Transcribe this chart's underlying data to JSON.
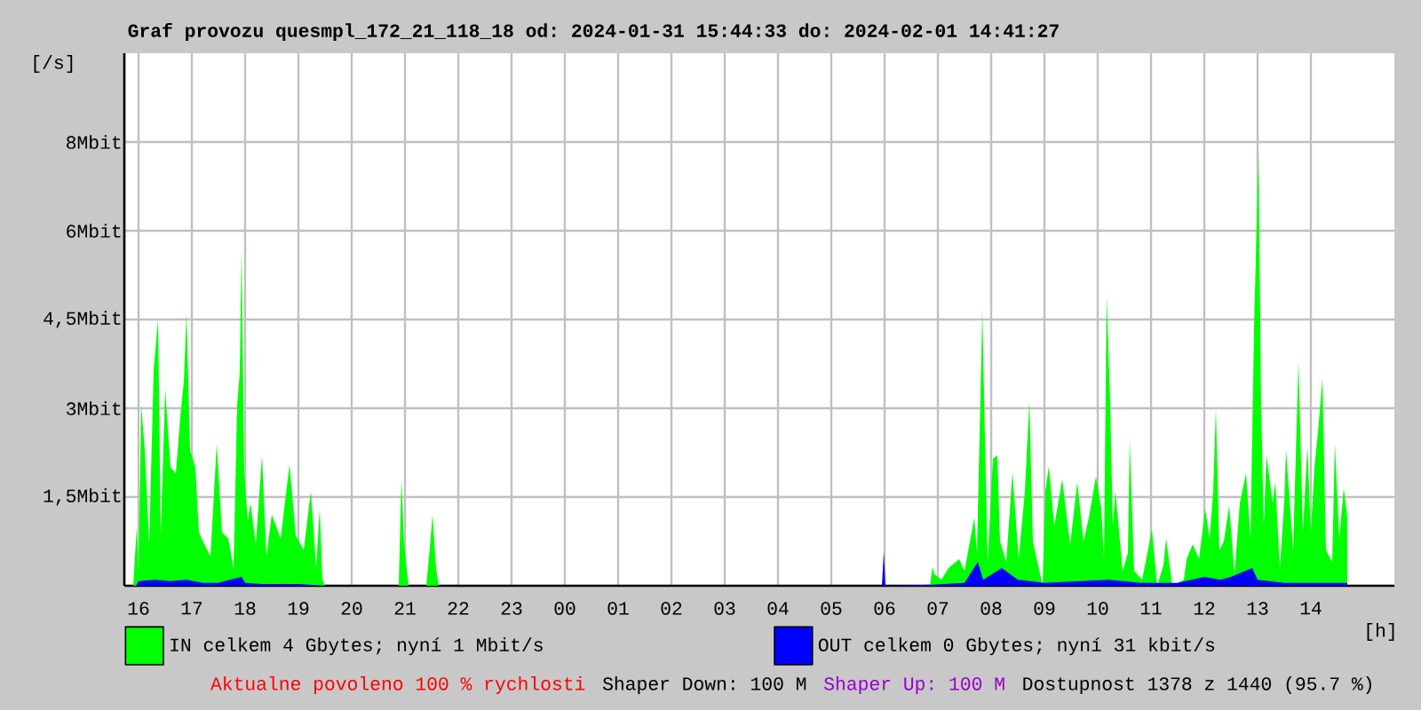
{
  "chart_data": {
    "type": "area",
    "title": "Graf provozu quesmpl_172_21_118_18 od: 2024-01-31 15:44:33 do: 2024-02-01 14:41:27",
    "ylabel": "[/s]",
    "xlabel": "[h]",
    "xlim": [
      "2024-01-31T15:44",
      "2024-02-01T15:34"
    ],
    "xticks": [
      {
        "value": "2024-01-31T16:00",
        "label": "16"
      },
      {
        "value": "2024-01-31T17:00",
        "label": "17"
      },
      {
        "value": "2024-01-31T18:00",
        "label": "18"
      },
      {
        "value": "2024-01-31T19:00",
        "label": "19"
      },
      {
        "value": "2024-01-31T20:00",
        "label": "20"
      },
      {
        "value": "2024-01-31T21:00",
        "label": "21"
      },
      {
        "value": "2024-01-31T22:00",
        "label": "22"
      },
      {
        "value": "2024-01-31T23:00",
        "label": "23"
      },
      {
        "value": "2024-02-01T00:00",
        "label": "00"
      },
      {
        "value": "2024-02-01T01:00",
        "label": "01"
      },
      {
        "value": "2024-02-01T02:00",
        "label": "02"
      },
      {
        "value": "2024-02-01T03:00",
        "label": "03"
      },
      {
        "value": "2024-02-01T04:00",
        "label": "04"
      },
      {
        "value": "2024-02-01T05:00",
        "label": "05"
      },
      {
        "value": "2024-02-01T06:00",
        "label": "06"
      },
      {
        "value": "2024-02-01T07:00",
        "label": "07"
      },
      {
        "value": "2024-02-01T08:00",
        "label": "08"
      },
      {
        "value": "2024-02-01T09:00",
        "label": "09"
      },
      {
        "value": "2024-02-01T10:00",
        "label": "10"
      },
      {
        "value": "2024-02-01T11:00",
        "label": "11"
      },
      {
        "value": "2024-02-01T12:00",
        "label": "12"
      },
      {
        "value": "2024-02-01T13:00",
        "label": "13"
      },
      {
        "value": "2024-02-01T14:00",
        "label": "14"
      }
    ],
    "ylim": [
      0,
      9
    ],
    "yticks": [
      {
        "value": 1.5,
        "label": "1,5Mbit"
      },
      {
        "value": 3,
        "label": "3Mbit"
      },
      {
        "value": 4.5,
        "label": "4,5Mbit"
      },
      {
        "value": 6,
        "label": "6Mbit"
      },
      {
        "value": 7.5,
        "label": "8Mbit"
      }
    ],
    "grid": true,
    "legend": "bottom",
    "series": [
      {
        "name": "IN celkem 4 Gbytes; nyní 1 Mbit/s",
        "color": "#00ff00",
        "x": [
          "2024-01-31T15:54",
          "2024-01-31T15:58",
          "2024-01-31T16:00",
          "2024-01-31T16:03",
          "2024-01-31T16:07",
          "2024-01-31T16:12",
          "2024-01-31T16:17",
          "2024-01-31T16:22",
          "2024-01-31T16:25",
          "2024-01-31T16:30",
          "2024-01-31T16:36",
          "2024-01-31T16:42",
          "2024-01-31T16:47",
          "2024-01-31T16:51",
          "2024-01-31T16:54",
          "2024-01-31T16:58",
          "2024-01-31T17:04",
          "2024-01-31T17:08",
          "2024-01-31T17:14",
          "2024-01-31T17:21",
          "2024-01-31T17:28",
          "2024-01-31T17:34",
          "2024-01-31T17:41",
          "2024-01-31T17:47",
          "2024-01-31T17:51",
          "2024-01-31T17:54",
          "2024-01-31T17:56",
          "2024-01-31T17:59",
          "2024-01-31T18:03",
          "2024-01-31T18:06",
          "2024-01-31T18:12",
          "2024-01-31T18:19",
          "2024-01-31T18:24",
          "2024-01-31T18:30",
          "2024-01-31T18:40",
          "2024-01-31T18:50",
          "2024-01-31T18:57",
          "2024-01-31T19:06",
          "2024-01-31T19:14",
          "2024-01-31T19:20",
          "2024-01-31T19:24",
          "2024-01-31T19:27",
          "2024-01-31T19:30",
          "2024-01-31T20:53",
          "2024-01-31T20:56",
          "2024-01-31T20:59",
          "2024-01-31T21:04",
          "2024-01-31T21:24",
          "2024-01-31T21:28",
          "2024-01-31T21:31",
          "2024-01-31T21:35",
          "2024-01-31T21:38",
          "2024-02-01T06:51",
          "2024-02-01T06:54",
          "2024-02-01T06:56",
          "2024-02-01T07:04",
          "2024-02-01T07:12",
          "2024-02-01T07:24",
          "2024-02-01T07:30",
          "2024-02-01T07:41",
          "2024-02-01T07:44",
          "2024-02-01T07:49",
          "2024-02-01T07:50",
          "2024-02-01T07:53",
          "2024-02-01T07:56",
          "2024-02-01T08:02",
          "2024-02-01T08:07",
          "2024-02-01T08:10",
          "2024-02-01T08:17",
          "2024-02-01T08:24",
          "2024-02-01T08:31",
          "2024-02-01T08:38",
          "2024-02-01T08:43",
          "2024-02-01T08:47",
          "2024-02-01T08:58",
          "2024-02-01T09:01",
          "2024-02-01T09:05",
          "2024-02-01T09:11",
          "2024-02-01T09:20",
          "2024-02-01T09:24",
          "2024-02-01T09:29",
          "2024-02-01T09:37",
          "2024-02-01T09:44",
          "2024-02-01T09:50",
          "2024-02-01T09:58",
          "2024-02-01T10:04",
          "2024-02-01T10:07",
          "2024-02-01T10:10",
          "2024-02-01T10:14",
          "2024-02-01T10:17",
          "2024-02-01T10:20",
          "2024-02-01T10:28",
          "2024-02-01T10:34",
          "2024-02-01T10:36",
          "2024-02-01T10:41",
          "2024-02-01T10:50",
          "2024-02-01T11:01",
          "2024-02-01T11:07",
          "2024-02-01T11:14",
          "2024-02-01T11:17",
          "2024-02-01T11:24",
          "2024-02-01T11:37",
          "2024-02-01T11:40",
          "2024-02-01T11:47",
          "2024-02-01T11:54",
          "2024-02-01T12:01",
          "2024-02-01T12:06",
          "2024-02-01T12:10",
          "2024-02-01T12:13",
          "2024-02-01T12:17",
          "2024-02-01T12:22",
          "2024-02-01T12:28",
          "2024-02-01T12:34",
          "2024-02-01T12:40",
          "2024-02-01T12:47",
          "2024-02-01T12:52",
          "2024-02-01T12:56",
          "2024-02-01T13:01",
          "2024-02-01T13:04",
          "2024-02-01T13:07",
          "2024-02-01T13:10",
          "2024-02-01T13:17",
          "2024-02-01T13:20",
          "2024-02-01T13:25",
          "2024-02-01T13:30",
          "2024-02-01T13:32",
          "2024-02-01T13:40",
          "2024-02-01T13:46",
          "2024-02-01T13:51",
          "2024-02-01T13:56",
          "2024-02-01T14:00",
          "2024-02-01T14:04",
          "2024-02-01T14:08",
          "2024-02-01T14:13",
          "2024-02-01T14:17",
          "2024-02-01T14:24",
          "2024-02-01T14:27",
          "2024-02-01T14:32",
          "2024-02-01T14:37",
          "2024-02-01T14:41"
        ],
        "values": [
          0,
          1.0,
          0.2,
          3.05,
          2.3,
          0.7,
          3.65,
          4.5,
          0.85,
          3.33,
          2.0,
          1.9,
          2.85,
          3.45,
          4.6,
          2.3,
          2.0,
          0.9,
          0.7,
          0.5,
          2.4,
          0.9,
          0.8,
          0.3,
          3.05,
          3.6,
          5.7,
          1.9,
          1.1,
          1.4,
          0.7,
          2.2,
          0.5,
          1.2,
          0.8,
          2.05,
          0.85,
          0.6,
          1.6,
          0.3,
          1.3,
          0.1,
          0,
          0,
          1.8,
          0.7,
          0,
          0,
          0.65,
          1.2,
          0.3,
          0,
          0,
          0.32,
          0.2,
          0.1,
          0.3,
          0.45,
          0.25,
          1.15,
          0.55,
          3.9,
          4.65,
          2.5,
          0.4,
          2.15,
          2.2,
          0.75,
          0.4,
          1.92,
          0.45,
          1.6,
          3.12,
          0.75,
          0,
          1.6,
          2.02,
          1.0,
          1.8,
          1.3,
          0.7,
          1.75,
          0.75,
          1.15,
          1.85,
          1.3,
          0.45,
          4.9,
          3.1,
          1.0,
          1.6,
          0.25,
          0.55,
          2.45,
          0.25,
          0.1,
          0.95,
          0,
          0.35,
          0.8,
          0,
          0.1,
          0.45,
          0.7,
          0.45,
          1.3,
          0.8,
          1.6,
          3.0,
          0.6,
          0.75,
          1.35,
          0.2,
          1.4,
          1.9,
          0.8,
          4.35,
          7.35,
          3.0,
          1.0,
          2.2,
          1.4,
          1.75,
          0.3,
          1.4,
          2.3,
          0.6,
          3.8,
          0.9,
          2.35,
          0.9,
          2.0,
          2.6,
          3.5,
          0.6,
          0.4,
          2.4,
          0.8,
          1.65,
          1.15
        ]
      },
      {
        "name": "OUT celkem 0 Gbytes; nyní 31 kbit/s",
        "color": "#0000ff",
        "x": [
          "2024-01-31T15:57",
          "2024-01-31T16:00",
          "2024-01-31T16:18",
          "2024-01-31T16:36",
          "2024-01-31T16:54",
          "2024-01-31T17:12",
          "2024-01-31T17:30",
          "2024-01-31T17:56",
          "2024-01-31T18:00",
          "2024-01-31T18:18",
          "2024-01-31T19:00",
          "2024-01-31T19:30",
          "2024-02-01T05:57",
          "2024-02-01T05:59",
          "2024-02-01T06:01",
          "2024-02-01T06:54",
          "2024-02-01T07:30",
          "2024-02-01T07:45",
          "2024-02-01T07:51",
          "2024-02-01T08:12",
          "2024-02-01T08:30",
          "2024-02-01T09:00",
          "2024-02-01T10:12",
          "2024-02-01T10:48",
          "2024-02-01T11:30",
          "2024-02-01T12:00",
          "2024-02-01T12:18",
          "2024-02-01T12:30",
          "2024-02-01T12:54",
          "2024-02-01T13:00",
          "2024-02-01T13:30",
          "2024-02-01T14:00",
          "2024-02-01T14:41"
        ],
        "values": [
          0,
          0.08,
          0.1,
          0.08,
          0.1,
          0.05,
          0.05,
          0.15,
          0.05,
          0.03,
          0.03,
          0,
          0,
          0.57,
          0,
          0.02,
          0.05,
          0.4,
          0.1,
          0.3,
          0.1,
          0.05,
          0.1,
          0.05,
          0.05,
          0.15,
          0.1,
          0.15,
          0.3,
          0.1,
          0.05,
          0.05,
          0.05
        ]
      }
    ],
    "annotations": [
      "Aktualne povoleno 100 % rychlosti",
      "Shaper Down: 100 M",
      "Shaper Up: 100 M",
      "Dostupnost 1378 z 1440 (95.7 %)"
    ]
  }
}
